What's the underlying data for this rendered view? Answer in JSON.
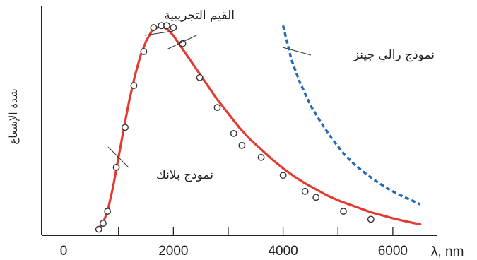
{
  "chart_data": {
    "type": "line",
    "xlabel": "λ, nm",
    "ylabel": "شدة الإشعاع",
    "xlim": [
      -400,
      6800
    ],
    "ylim": [
      0,
      1.15
    ],
    "xticks": [
      0,
      2000,
      4000,
      6000
    ],
    "xtick_labels": [
      "0",
      "2000",
      "4000",
      "6000"
    ],
    "xminor": [
      1000,
      3000,
      5000
    ],
    "grid": false,
    "legend": "none",
    "series": [
      {
        "name": "نموذج بلانك",
        "style": "solid",
        "color": "#e23a2e",
        "x": [
          600,
          700,
          800,
          900,
          1000,
          1100,
          1200,
          1300,
          1400,
          1500,
          1600,
          1700,
          1800,
          1900,
          2000,
          2100,
          2200,
          2400,
          2600,
          2800,
          3000,
          3200,
          3400,
          3600,
          3800,
          4000,
          4200,
          4400,
          4600,
          4800,
          5000,
          5200,
          5400,
          5600,
          5800,
          6000,
          6200,
          6400,
          6500
        ],
        "values": [
          0.03,
          0.05,
          0.12,
          0.24,
          0.39,
          0.54,
          0.68,
          0.8,
          0.9,
          0.97,
          1.02,
          1.04,
          1.045,
          1.03,
          1.0,
          0.96,
          0.92,
          0.84,
          0.76,
          0.68,
          0.61,
          0.54,
          0.48,
          0.43,
          0.38,
          0.335,
          0.295,
          0.26,
          0.23,
          0.2,
          0.175,
          0.155,
          0.135,
          0.115,
          0.1,
          0.085,
          0.072,
          0.06,
          0.055
        ]
      },
      {
        "name": "نموذج رالي جينز",
        "style": "dashed",
        "color": "#2369b8",
        "x": [
          4000,
          4150,
          4300,
          4500,
          4700,
          4900,
          5100,
          5300,
          5500,
          5700,
          5900,
          6100,
          6300,
          6500
        ],
        "values": [
          1.05,
          0.88,
          0.77,
          0.65,
          0.56,
          0.48,
          0.41,
          0.355,
          0.31,
          0.27,
          0.235,
          0.205,
          0.18,
          0.155
        ]
      },
      {
        "name": "القيم التجريبية",
        "style": "markers",
        "color": "#333333",
        "x": [
          640,
          720,
          800,
          960,
          1120,
          1280,
          1460,
          1640,
          1780,
          1880,
          2000,
          2170,
          2480,
          2800,
          3100,
          3250,
          3600,
          4000,
          4400,
          4600,
          5100,
          5600
        ],
        "values": [
          0.03,
          0.06,
          0.12,
          0.34,
          0.54,
          0.75,
          0.92,
          1.04,
          1.05,
          1.05,
          1.04,
          0.96,
          0.79,
          0.64,
          0.51,
          0.45,
          0.39,
          0.3,
          0.22,
          0.19,
          0.12,
          0.08
        ]
      }
    ],
    "annotations": {
      "experimental": "القيم التجريبية",
      "rayleigh": "نموذج رالي جينز",
      "planck": "نموذج بلانك"
    }
  }
}
